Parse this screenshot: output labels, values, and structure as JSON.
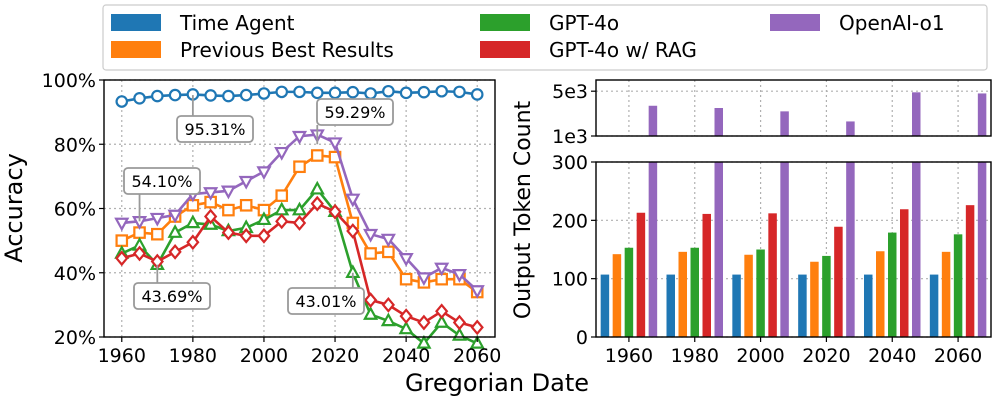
{
  "legend": {
    "items": [
      {
        "label": "Time Agent",
        "color": "#1f77b4"
      },
      {
        "label": "Previous Best Results",
        "color": "#ff7f0e"
      },
      {
        "label": "GPT-4o",
        "color": "#2ca02c"
      },
      {
        "label": "GPT-4o w/ RAG",
        "color": "#d62728"
      },
      {
        "label": "OpenAI-o1",
        "color": "#9467bd"
      }
    ]
  },
  "shared": {
    "xlabel": "Gregorian Date"
  },
  "chart_data": [
    {
      "type": "line",
      "ylabel": "Accuracy",
      "xlim": [
        1955,
        2065
      ],
      "ylim": [
        20,
        100
      ],
      "x_ticks": [
        "1960",
        "1980",
        "2000",
        "2020",
        "2040",
        "2060"
      ],
      "y_ticks": [
        "20%",
        "40%",
        "60%",
        "80%",
        "100%"
      ],
      "x": [
        1960,
        1965,
        1970,
        1975,
        1980,
        1985,
        1990,
        1995,
        2000,
        2005,
        2010,
        2015,
        2020,
        2025,
        2030,
        2035,
        2040,
        2045,
        2050,
        2055,
        2060
      ],
      "series": [
        {
          "name": "Time Agent",
          "marker": "circle",
          "values": [
            93.3,
            94.3,
            95.0,
            95.3,
            95.5,
            95.2,
            95.0,
            95.3,
            95.8,
            96.3,
            96.3,
            96.0,
            96.0,
            96.2,
            95.8,
            96.5,
            96.0,
            96.2,
            96.5,
            96.3,
            95.5
          ]
        },
        {
          "name": "Previous Best Results",
          "marker": "square",
          "values": [
            50.0,
            52.5,
            52.0,
            57.5,
            61.0,
            62.0,
            59.5,
            61.0,
            59.5,
            64.0,
            73.0,
            76.5,
            76.0,
            55.5,
            46.0,
            46.5,
            38.0,
            37.0,
            38.0,
            38.0,
            34.0
          ]
        },
        {
          "name": "GPT-4o",
          "marker": "triangle-up",
          "values": [
            46.0,
            48.5,
            42.5,
            52.5,
            55.5,
            55.0,
            53.0,
            54.0,
            56.5,
            59.5,
            59.5,
            66.0,
            59.0,
            40.0,
            27.0,
            25.0,
            22.5,
            18.0,
            24.5,
            20.5,
            18.0
          ]
        },
        {
          "name": "GPT-4o w/ RAG",
          "marker": "diamond",
          "values": [
            44.5,
            46.0,
            43.5,
            46.5,
            49.5,
            57.5,
            52.5,
            51.5,
            51.5,
            56.0,
            55.5,
            61.5,
            59.0,
            53.0,
            31.5,
            30.0,
            26.5,
            24.5,
            28.0,
            24.5,
            23.0
          ]
        },
        {
          "name": "OpenAI-o1",
          "marker": "triangle-down",
          "values": [
            55.5,
            56.0,
            57.0,
            58.0,
            64.5,
            65.0,
            65.5,
            68.5,
            71.5,
            77.5,
            82.5,
            83.0,
            80.5,
            63.0,
            52.0,
            50.5,
            44.5,
            38.5,
            41.5,
            39.5,
            34.5
          ]
        }
      ],
      "annotations": [
        {
          "text": "95.31%",
          "at_x": 1980,
          "at_y": 95.31
        },
        {
          "text": "59.29%",
          "at_x": 2015,
          "at_y": 80.0
        },
        {
          "text": "54.10%",
          "at_x": 1965,
          "at_y": 56.0
        },
        {
          "text": "43.69%",
          "at_x": 1970,
          "at_y": 42.5
        },
        {
          "text": "43.01%",
          "at_x": 2025,
          "at_y": 40.0
        }
      ]
    },
    {
      "type": "bar",
      "ylabel": "Output Token Count",
      "categories": [
        "1960",
        "1980",
        "2000",
        "2020",
        "2040",
        "2060"
      ],
      "upper_ylim": [
        1000,
        6000
      ],
      "upper_ticks": [
        "1e3",
        "5e3"
      ],
      "lower_ylim": [
        0,
        300
      ],
      "lower_ticks": [
        "0",
        "100",
        "200",
        "300"
      ],
      "series": [
        {
          "name": "Time Agent",
          "values": [
            107,
            107,
            107,
            107,
            107,
            107
          ]
        },
        {
          "name": "Previous Best Results",
          "values": [
            142,
            146,
            141,
            129,
            147,
            146
          ]
        },
        {
          "name": "GPT-4o",
          "values": [
            153,
            153,
            150,
            139,
            179,
            176
          ]
        },
        {
          "name": "GPT-4o w/ RAG",
          "values": [
            213,
            211,
            212,
            189,
            219,
            226
          ]
        },
        {
          "name": "OpenAI-o1",
          "values": [
            3700,
            3500,
            3200,
            2300,
            4900,
            4800
          ]
        }
      ]
    }
  ]
}
